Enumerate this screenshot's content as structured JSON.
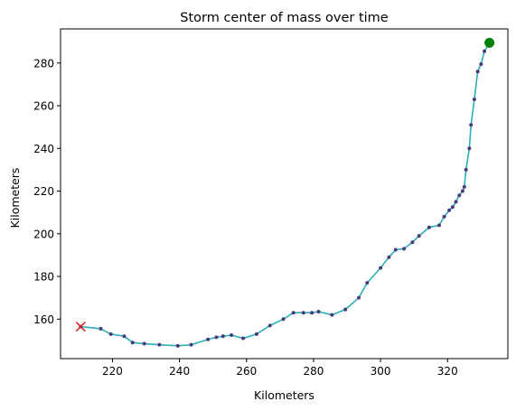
{
  "chart_data": {
    "type": "line",
    "title": "Storm center of mass over time",
    "xlabel": "Kilometers",
    "ylabel": "Kilometers",
    "xlim": [
      204.5,
      338
    ],
    "ylim": [
      141.5,
      296
    ],
    "xticks": [
      220,
      240,
      260,
      280,
      300,
      320
    ],
    "yticks": [
      160,
      180,
      200,
      220,
      240,
      260,
      280
    ],
    "grid": false,
    "legend": "none",
    "colors": {
      "line": "#2ab0b8",
      "points": "#4b3a7a",
      "start_marker": "#d62728",
      "end_marker": "#008000"
    },
    "start_marker": {
      "shape": "x",
      "x": 210.5,
      "y": 156.5
    },
    "end_marker": {
      "shape": "circle",
      "x": 332.5,
      "y": 289.5
    },
    "series": [
      {
        "x": [
          210.5,
          216.5,
          219.5,
          223.5,
          226.0,
          229.5,
          234.0,
          239.5,
          243.5,
          248.5,
          251.0,
          253.0,
          255.5,
          259.0,
          263.0,
          267.0,
          271.0,
          274.0,
          277.0,
          279.5,
          281.5,
          285.5,
          289.5,
          293.5,
          296.0,
          300.0,
          302.5,
          304.5,
          307.0,
          309.5,
          311.5,
          314.5,
          317.5,
          319.0,
          320.5,
          321.5,
          322.5,
          323.5,
          324.5,
          325.0,
          325.5,
          326.5,
          327.0,
          328.0,
          329.0,
          330.0,
          331.0,
          332.5
        ],
        "y": [
          156.5,
          155.5,
          153.0,
          152.0,
          149.0,
          148.5,
          148.0,
          147.5,
          148.0,
          150.5,
          151.5,
          152.0,
          152.5,
          151.0,
          153.0,
          157.0,
          160.0,
          163.0,
          163.0,
          163.0,
          163.5,
          162.0,
          164.5,
          170.0,
          177.0,
          184.0,
          189.0,
          192.5,
          193.0,
          196.0,
          199.0,
          203.0,
          204.0,
          208.0,
          211.0,
          212.5,
          215.0,
          218.0,
          220.0,
          222.0,
          230.0,
          240.0,
          251.0,
          263.0,
          276.0,
          279.5,
          285.5,
          289.5
        ]
      }
    ]
  }
}
